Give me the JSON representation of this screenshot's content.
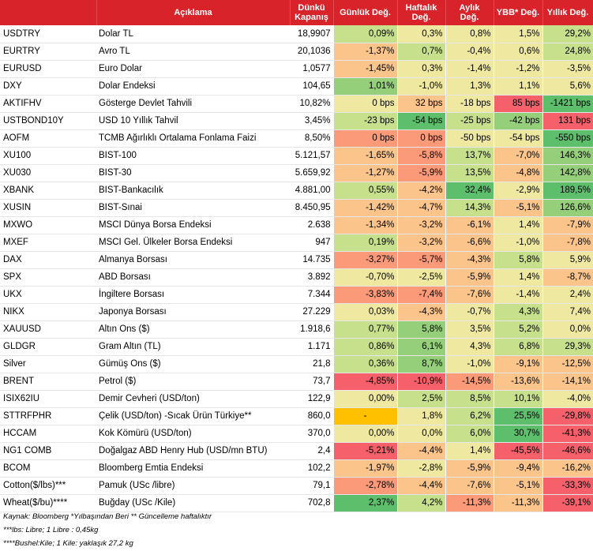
{
  "header": {
    "code": "",
    "description": "Açıklama",
    "close": "Dünkü\nKapanış",
    "daily": "Günlük Değ.",
    "weekly": "Haftalık\nDeğ.",
    "monthly": "Aylık\nDeğ.",
    "ytd": "YBB* Değ.",
    "yearly": "Yıllık Değ."
  },
  "colors": {
    "header_bg": "#d8232a",
    "strong_green": "#5dbe6b",
    "green": "#95cf7a",
    "light_green": "#c6e08b",
    "yellow": "#eee8a0",
    "orange": "#fbc48a",
    "salmon": "#fa9a78",
    "red": "#f6606a",
    "na": "#ffc000"
  },
  "rows": [
    {
      "code": "USDTRY",
      "desc": "Dolar TL",
      "close": "18,9907",
      "d": "0,09%",
      "w": "0,3%",
      "m": "0,8%",
      "ytd": "1,5%",
      "y": "29,2%",
      "c": [
        "light_green",
        "yellow",
        "yellow",
        "yellow",
        "light_green"
      ]
    },
    {
      "code": "EURTRY",
      "desc": "Avro TL",
      "close": "20,1036",
      "d": "-1,37%",
      "w": "0,7%",
      "m": "-0,4%",
      "ytd": "0,6%",
      "y": "24,8%",
      "c": [
        "orange",
        "light_green",
        "yellow",
        "yellow",
        "light_green"
      ]
    },
    {
      "code": "EURUSD",
      "desc": "Euro Dolar",
      "close": "1,0577",
      "d": "-1,45%",
      "w": "0,3%",
      "m": "-1,4%",
      "ytd": "-1,2%",
      "y": "-3,5%",
      "c": [
        "orange",
        "yellow",
        "yellow",
        "yellow",
        "yellow"
      ]
    },
    {
      "code": "DXY",
      "desc": "Dolar Endeksi",
      "close": "104,65",
      "d": "1,01%",
      "w": "-1,0%",
      "m": "1,3%",
      "ytd": "1,1%",
      "y": "5,6%",
      "c": [
        "green",
        "yellow",
        "yellow",
        "yellow",
        "yellow"
      ]
    },
    {
      "code": "AKTIFHV",
      "desc": "Gösterge Devlet Tahvili",
      "close": "10,82%",
      "d": "0 bps",
      "w": "32 bps",
      "m": "-18 bps",
      "ytd": "85 bps",
      "y": "-1421 bps",
      "c": [
        "yellow",
        "orange",
        "yellow",
        "red",
        "strong_green"
      ]
    },
    {
      "code": "USTBOND10Y",
      "desc": "USD 10 Yıllık Tahvil",
      "close": "3,45%",
      "d": "-23 bps",
      "w": "-54 bps",
      "m": "-25 bps",
      "ytd": "-42 bps",
      "y": "131 bps",
      "c": [
        "light_green",
        "strong_green",
        "light_green",
        "green",
        "red"
      ]
    },
    {
      "code": "AOFM",
      "desc": "TCMB Ağırlıklı Ortalama Fonlama Faizi",
      "close": "8,50%",
      "d": "0 bps",
      "w": "0 bps",
      "m": "-50 bps",
      "ytd": "-54 bps",
      "y": "-550 bps",
      "c": [
        "salmon",
        "salmon",
        "yellow",
        "yellow",
        "strong_green"
      ]
    },
    {
      "code": "XU100",
      "desc": "BIST-100",
      "close": "5.121,57",
      "d": "-1,65%",
      "w": "-5,8%",
      "m": "13,7%",
      "ytd": "-7,0%",
      "y": "146,3%",
      "c": [
        "orange",
        "salmon",
        "light_green",
        "orange",
        "green"
      ]
    },
    {
      "code": "XU030",
      "desc": "BIST-30",
      "close": "5.659,92",
      "d": "-1,27%",
      "w": "-5,9%",
      "m": "13,5%",
      "ytd": "-4,8%",
      "y": "142,8%",
      "c": [
        "orange",
        "salmon",
        "light_green",
        "orange",
        "green"
      ]
    },
    {
      "code": "XBANK",
      "desc": "BIST-Bankacılık",
      "close": "4.881,00",
      "d": "0,55%",
      "w": "-4,2%",
      "m": "32,4%",
      "ytd": "-2,9%",
      "y": "189,5%",
      "c": [
        "light_green",
        "orange",
        "strong_green",
        "yellow",
        "strong_green"
      ]
    },
    {
      "code": "XUSIN",
      "desc": "BIST-Sınai",
      "close": "8.450,95",
      "d": "-1,42%",
      "w": "-4,7%",
      "m": "14,3%",
      "ytd": "-5,1%",
      "y": "126,6%",
      "c": [
        "orange",
        "orange",
        "light_green",
        "orange",
        "green"
      ]
    },
    {
      "code": "MXWO",
      "desc": "MSCI Dünya Borsa Endeksi",
      "close": "2.638",
      "d": "-1,34%",
      "w": "-3,2%",
      "m": "-6,1%",
      "ytd": "1,4%",
      "y": "-7,9%",
      "c": [
        "orange",
        "orange",
        "orange",
        "yellow",
        "orange"
      ]
    },
    {
      "code": "MXEF",
      "desc": "MSCI Gel. Ülkeler Borsa Endeksi",
      "close": "947",
      "d": "0,19%",
      "w": "-3,2%",
      "m": "-6,6%",
      "ytd": "-1,0%",
      "y": "-7,8%",
      "c": [
        "light_green",
        "orange",
        "orange",
        "yellow",
        "orange"
      ]
    },
    {
      "code": "DAX",
      "desc": "Almanya Borsası",
      "close": "14.735",
      "d": "-3,27%",
      "w": "-5,7%",
      "m": "-4,3%",
      "ytd": "5,8%",
      "y": "5,9%",
      "c": [
        "salmon",
        "salmon",
        "orange",
        "light_green",
        "yellow"
      ]
    },
    {
      "code": "SPX",
      "desc": "ABD Borsası",
      "close": "3.892",
      "d": "-0,70%",
      "w": "-2,5%",
      "m": "-5,9%",
      "ytd": "1,4%",
      "y": "-8,7%",
      "c": [
        "yellow",
        "yellow",
        "orange",
        "yellow",
        "orange"
      ]
    },
    {
      "code": "UKX",
      "desc": "İngiltere Borsası",
      "close": "7.344",
      "d": "-3,83%",
      "w": "-7,4%",
      "m": "-7,6%",
      "ytd": "-1,4%",
      "y": "2,4%",
      "c": [
        "salmon",
        "salmon",
        "orange",
        "yellow",
        "yellow"
      ]
    },
    {
      "code": "NIKX",
      "desc": "Japonya Borsası",
      "close": "27.229",
      "d": "0,03%",
      "w": "-4,3%",
      "m": "-0,7%",
      "ytd": "4,3%",
      "y": "7,4%",
      "c": [
        "yellow",
        "orange",
        "yellow",
        "light_green",
        "yellow"
      ]
    },
    {
      "code": "XAUUSD",
      "desc": "Altın Ons ($)",
      "close": "1.918,6",
      "d": "0,77%",
      "w": "5,8%",
      "m": "3,5%",
      "ytd": "5,2%",
      "y": "0,0%",
      "c": [
        "light_green",
        "green",
        "yellow",
        "light_green",
        "yellow"
      ]
    },
    {
      "code": "GLDGR",
      "desc": "Gram Altın (TL)",
      "close": "1.171",
      "d": "0,86%",
      "w": "6,1%",
      "m": "4,3%",
      "ytd": "6,8%",
      "y": "29,3%",
      "c": [
        "light_green",
        "green",
        "yellow",
        "light_green",
        "light_green"
      ]
    },
    {
      "code": "Silver",
      "desc": "Gümüş Ons ($)",
      "close": "21,8",
      "d": "0,36%",
      "w": "8,7%",
      "m": "-1,0%",
      "ytd": "-9,1%",
      "y": "-12,5%",
      "c": [
        "light_green",
        "green",
        "yellow",
        "orange",
        "orange"
      ]
    },
    {
      "code": "BRENT",
      "desc": "Petrol ($)",
      "close": "73,7",
      "d": "-4,85%",
      "w": "-10,9%",
      "m": "-14,5%",
      "ytd": "-13,6%",
      "y": "-14,1%",
      "c": [
        "red",
        "red",
        "salmon",
        "orange",
        "orange"
      ]
    },
    {
      "code": "ISIX62IU",
      "desc": "Demir Cevheri (USD/ton)",
      "close": "122,9",
      "d": "0,00%",
      "w": "2,5%",
      "m": "8,5%",
      "ytd": "10,1%",
      "y": "-4,0%",
      "c": [
        "yellow",
        "light_green",
        "light_green",
        "light_green",
        "yellow"
      ]
    },
    {
      "code": "STTRFPHR",
      "desc": "Çelik (USD/ton) -Sıcak Ürün Türkiye**",
      "close": "860,0",
      "d": "-",
      "w": "1,8%",
      "m": "6,2%",
      "ytd": "25,5%",
      "y": "-29,8%",
      "c": [
        "na",
        "yellow",
        "light_green",
        "strong_green",
        "red"
      ]
    },
    {
      "code": "HCCAM",
      "desc": "Kok Kömürü (USD/ton)",
      "close": "370,0",
      "d": "0,00%",
      "w": "0,0%",
      "m": "6,0%",
      "ytd": "30,7%",
      "y": "-41,3%",
      "c": [
        "yellow",
        "yellow",
        "light_green",
        "strong_green",
        "red"
      ]
    },
    {
      "code": "NG1 COMB",
      "desc": "Doğalgaz ABD Henry Hub (USD/mn BTU)",
      "close": "2,4",
      "d": "-5,21%",
      "w": "-4,4%",
      "m": "1,4%",
      "ytd": "-45,5%",
      "y": "-46,6%",
      "c": [
        "red",
        "orange",
        "yellow",
        "red",
        "red"
      ]
    },
    {
      "code": "BCOM",
      "desc": "Bloomberg Emtia Endeksi",
      "close": "102,2",
      "d": "-1,97%",
      "w": "-2,8%",
      "m": "-5,9%",
      "ytd": "-9,4%",
      "y": "-16,2%",
      "c": [
        "orange",
        "yellow",
        "orange",
        "orange",
        "orange"
      ]
    },
    {
      "code": "Cotton($/lbs)***",
      "desc": "Pamuk (USc /libre)",
      "close": "79,1",
      "d": "-2,78%",
      "w": "-4,4%",
      "m": "-7,6%",
      "ytd": "-5,1%",
      "y": "-33,3%",
      "c": [
        "salmon",
        "orange",
        "orange",
        "orange",
        "red"
      ]
    },
    {
      "code": "Wheat($/bu)****",
      "desc": "Buğday (USc /Kile)",
      "close": "702,8",
      "d": "2,37%",
      "w": "4,2%",
      "m": "-11,3%",
      "ytd": "-11,3%",
      "y": "-39,1%",
      "c": [
        "strong_green",
        "light_green",
        "salmon",
        "orange",
        "red"
      ]
    }
  ],
  "notes": [
    "Kaynak: Bloomberg *Yılbaşından Beri  ** Güncelleme haftalıktır",
    "***lbs: Libre; 1 Libre : 0,45kg",
    "****Bushel:Kile; 1 Kile: yaklaşık 27,2 kg"
  ]
}
